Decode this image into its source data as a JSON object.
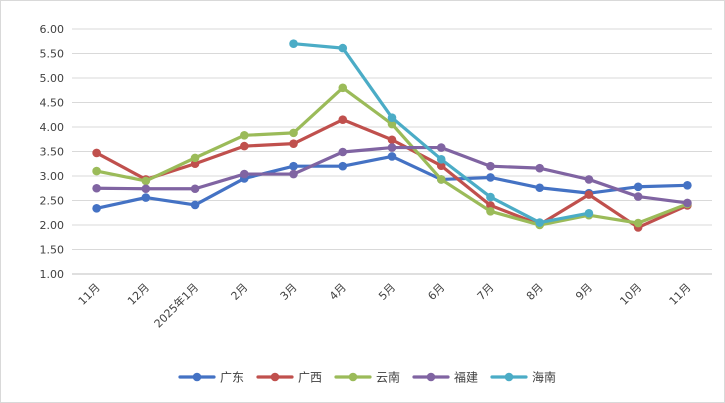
{
  "chart_data": {
    "type": "line",
    "title": "",
    "xlabel": "",
    "ylabel": "",
    "ylim": [
      1.0,
      6.0
    ],
    "ytick_labels": [
      "1.00",
      "1.50",
      "2.00",
      "2.50",
      "3.00",
      "3.50",
      "4.00",
      "4.50",
      "5.00",
      "5.50",
      "6.00"
    ],
    "categories": [
      "11月",
      "12月",
      "2025年1月",
      "2月",
      "3月",
      "4月",
      "5月",
      "6月",
      "7月",
      "8月",
      "9月",
      "10月",
      "11月"
    ],
    "grid": "horizontal",
    "legend_position": "bottom",
    "series": [
      {
        "name": "广东",
        "color": "#4472C4",
        "values": [
          2.34,
          2.56,
          2.41,
          2.95,
          3.2,
          3.2,
          3.4,
          2.93,
          2.97,
          2.76,
          2.65,
          2.78,
          2.81
        ]
      },
      {
        "name": "广西",
        "color": "#C0504D",
        "values": [
          3.47,
          2.93,
          3.25,
          3.61,
          3.66,
          4.15,
          3.74,
          3.21,
          2.4,
          2.01,
          2.62,
          1.95,
          2.4
        ]
      },
      {
        "name": "云南",
        "color": "#9BBB59",
        "values": [
          3.1,
          2.9,
          3.37,
          3.83,
          3.88,
          4.8,
          4.06,
          2.93,
          2.28,
          2.0,
          2.2,
          2.04,
          2.43
        ]
      },
      {
        "name": "福建",
        "color": "#8064A2",
        "values": [
          2.75,
          2.74,
          2.74,
          3.04,
          3.04,
          3.49,
          3.58,
          3.58,
          3.2,
          3.16,
          2.93,
          2.58,
          2.45
        ]
      },
      {
        "name": "海南",
        "color": "#4BACC6",
        "values": [
          null,
          null,
          null,
          null,
          5.7,
          5.61,
          4.19,
          3.34,
          2.57,
          2.05,
          2.24,
          null,
          null
        ]
      }
    ]
  }
}
